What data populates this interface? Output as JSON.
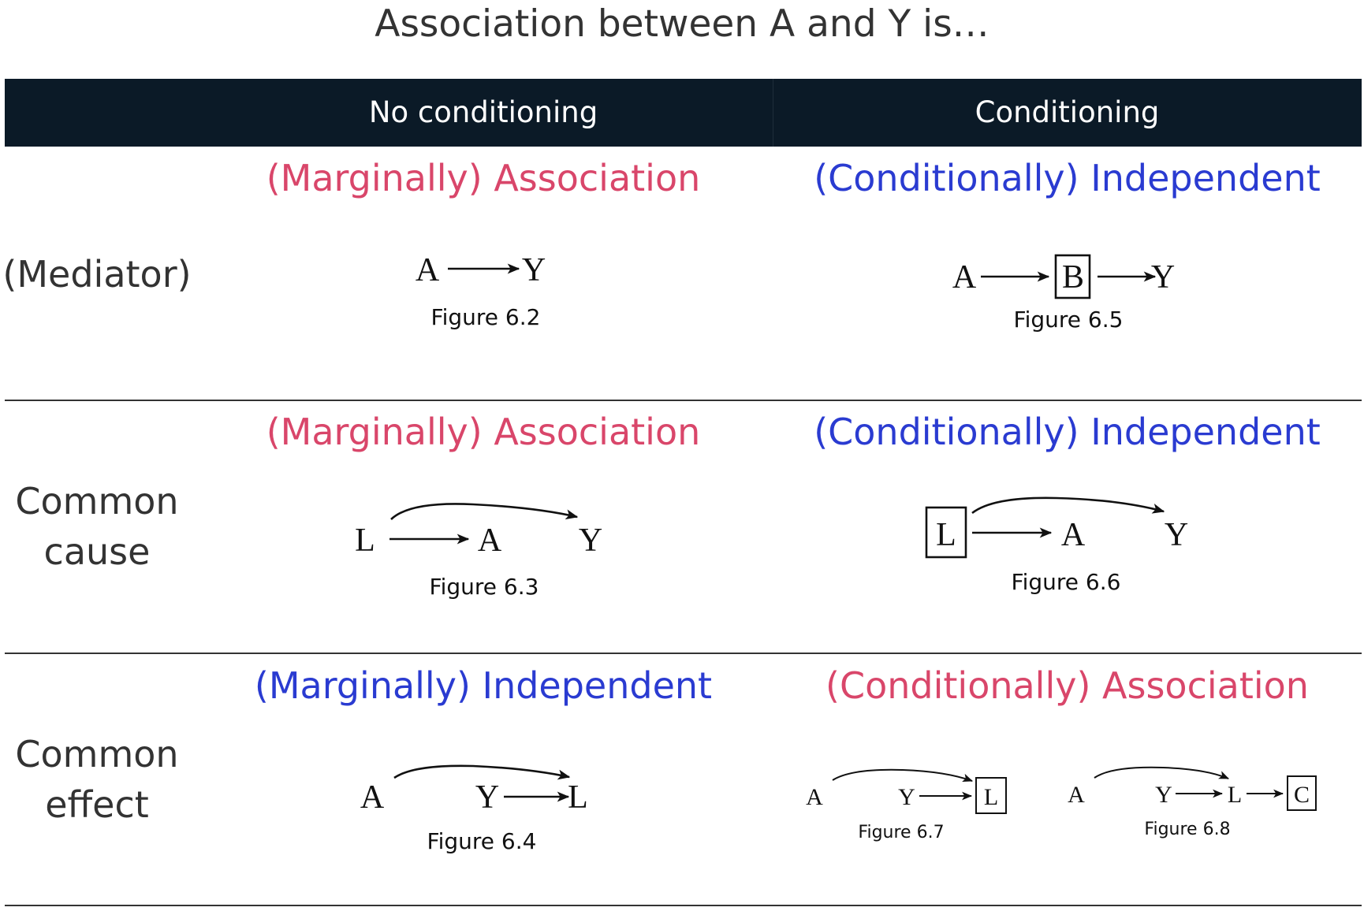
{
  "title": "Association between A and Y is…",
  "header": {
    "col_left": "No conditioning",
    "col_right": "Conditioning",
    "background": "#0b1a27"
  },
  "colors": {
    "association": "#d9466a",
    "independent": "#2a3bd1",
    "text": "#333333"
  },
  "rows": [
    {
      "label": "(Mediator)",
      "no_conditioning": {
        "verdict": "(Marginally) Association",
        "tone": "association",
        "figure": {
          "caption": "Figure 6.2",
          "nodes": [
            "A",
            "Y"
          ],
          "edges": [
            [
              "A",
              "Y"
            ]
          ],
          "conditioned": []
        }
      },
      "conditioning": {
        "verdict": "(Conditionally) Independent",
        "tone": "independent",
        "figure": {
          "caption": "Figure 6.5",
          "nodes": [
            "A",
            "B",
            "Y"
          ],
          "edges": [
            [
              "A",
              "B"
            ],
            [
              "B",
              "Y"
            ]
          ],
          "conditioned": [
            "B"
          ]
        }
      }
    },
    {
      "label_lines": [
        "Common",
        "cause"
      ],
      "no_conditioning": {
        "verdict": "(Marginally) Association",
        "tone": "association",
        "figure": {
          "caption": "Figure 6.3",
          "nodes": [
            "L",
            "A",
            "Y"
          ],
          "edges": [
            [
              "L",
              "A"
            ],
            [
              "L",
              "Y"
            ]
          ],
          "conditioned": []
        }
      },
      "conditioning": {
        "verdict": "(Conditionally) Independent",
        "tone": "independent",
        "figure": {
          "caption": "Figure 6.6",
          "nodes": [
            "L",
            "A",
            "Y"
          ],
          "edges": [
            [
              "L",
              "A"
            ],
            [
              "L",
              "Y"
            ]
          ],
          "conditioned": [
            "L"
          ]
        }
      }
    },
    {
      "label_lines": [
        "Common",
        "effect"
      ],
      "no_conditioning": {
        "verdict": "(Marginally) Independent",
        "tone": "independent",
        "figure": {
          "caption": "Figure 6.4",
          "nodes": [
            "A",
            "Y",
            "L"
          ],
          "edges": [
            [
              "A",
              "L"
            ],
            [
              "Y",
              "L"
            ]
          ],
          "conditioned": []
        }
      },
      "conditioning": {
        "verdict": "(Conditionally) Association",
        "tone": "association",
        "figures": [
          {
            "caption": "Figure 6.7",
            "nodes": [
              "A",
              "Y",
              "L"
            ],
            "edges": [
              [
                "A",
                "L"
              ],
              [
                "Y",
                "L"
              ]
            ],
            "conditioned": [
              "L"
            ]
          },
          {
            "caption": "Figure 6.8",
            "nodes": [
              "A",
              "Y",
              "L",
              "C"
            ],
            "edges": [
              [
                "A",
                "L"
              ],
              [
                "Y",
                "L"
              ],
              [
                "L",
                "C"
              ]
            ],
            "conditioned": [
              "C"
            ]
          }
        ]
      }
    }
  ]
}
